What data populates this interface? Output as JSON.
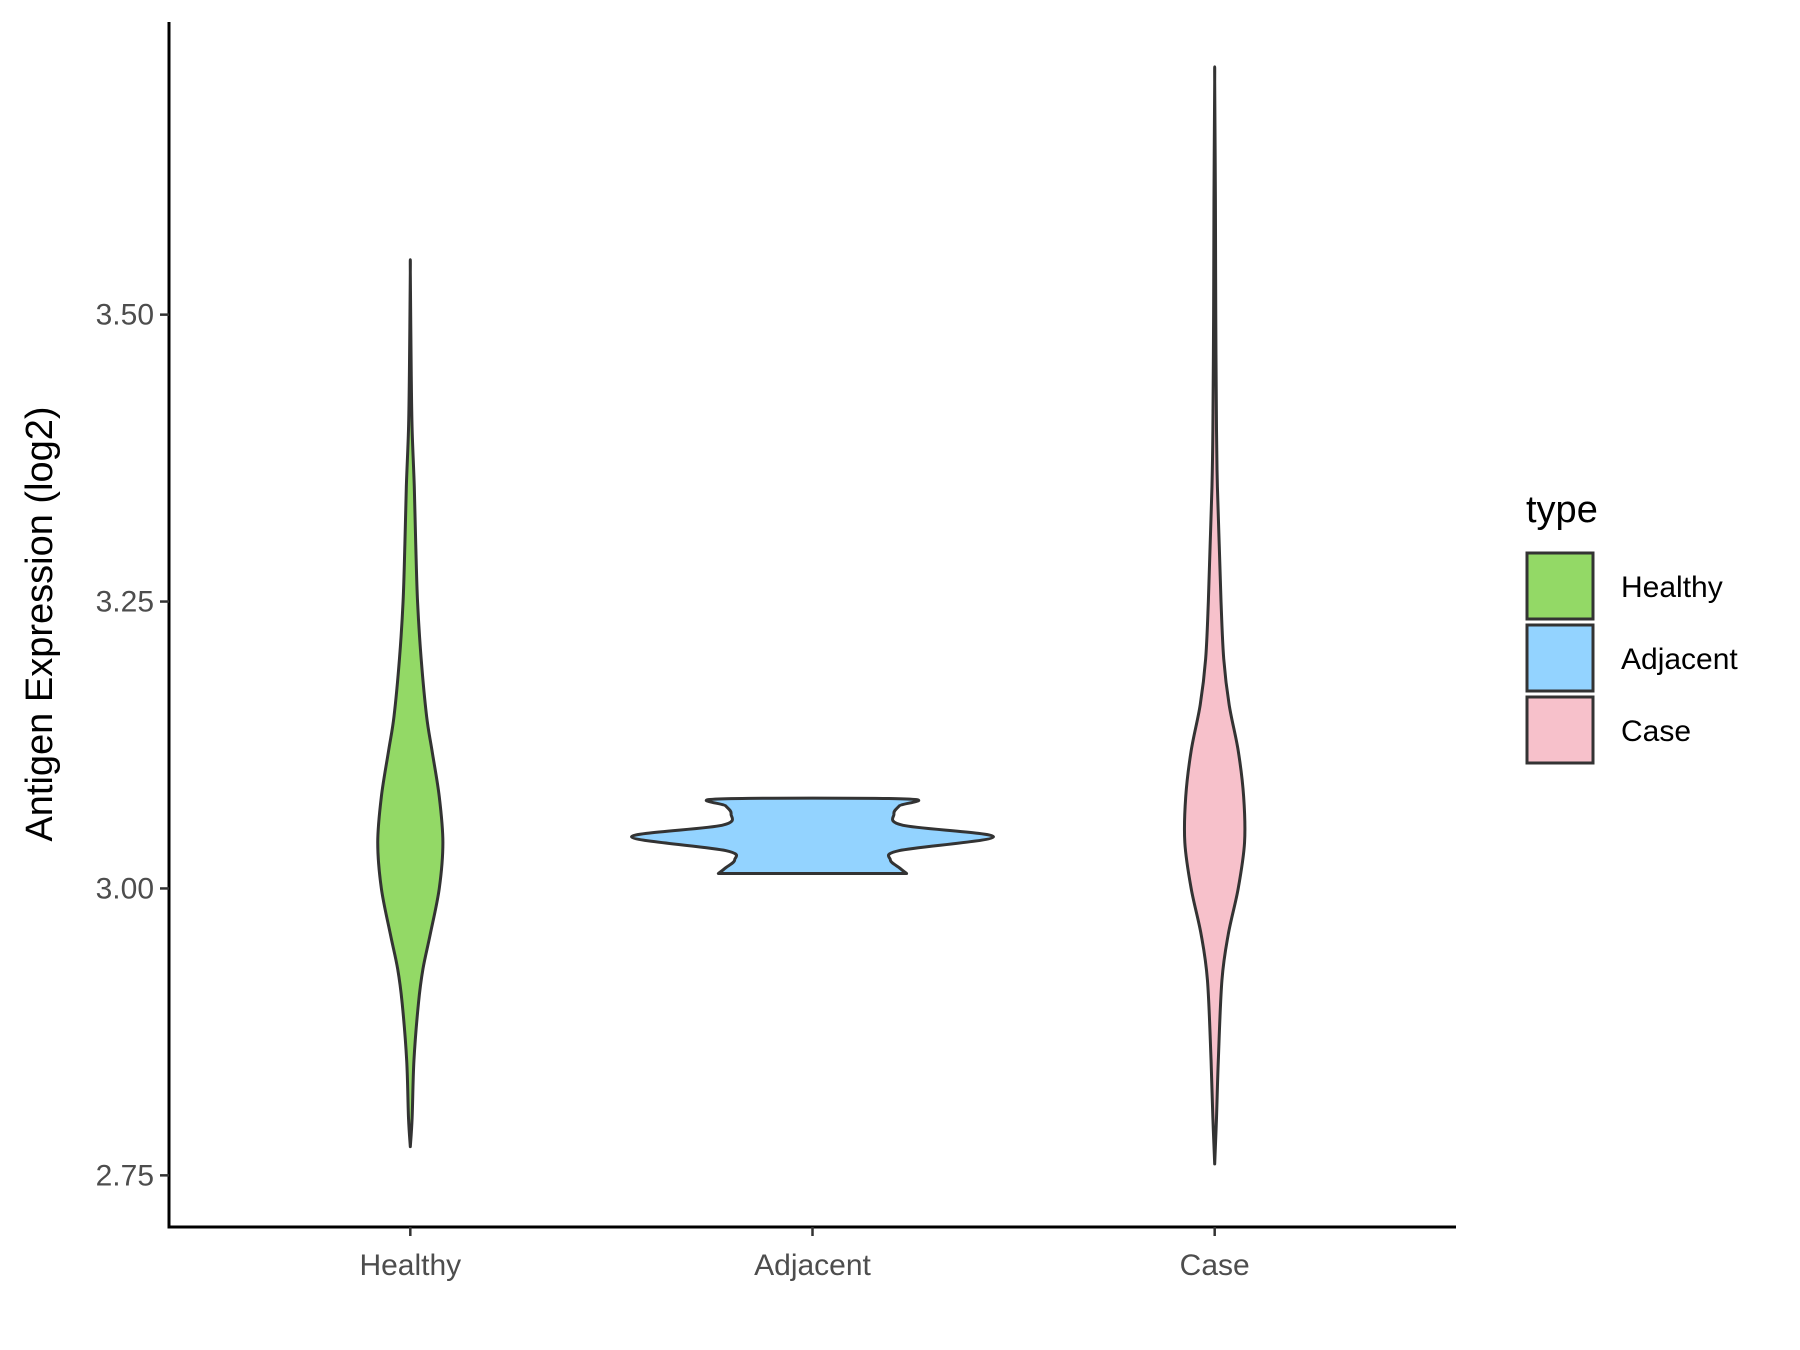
{
  "chart_data": {
    "type": "violin",
    "title": "",
    "xlabel": "",
    "ylabel": "Antigen Expression (log2)",
    "ylim": [
      2.705,
      3.755
    ],
    "yticks": [
      2.75,
      3.0,
      3.25,
      3.5
    ],
    "ytick_labels": [
      "2.75",
      "3.00",
      "3.25",
      "3.50"
    ],
    "grid": false,
    "categories": [
      "Healthy",
      "Adjacent",
      "Case"
    ],
    "legend": {
      "title": "type",
      "position": "right",
      "entries": [
        "Healthy",
        "Adjacent",
        "Case"
      ]
    },
    "series": [
      {
        "name": "Healthy",
        "color": "#93d966",
        "profile": [
          [
            2.775,
            0.0
          ],
          [
            2.8,
            0.01
          ],
          [
            2.85,
            0.02
          ],
          [
            2.9,
            0.045
          ],
          [
            2.93,
            0.07
          ],
          [
            2.96,
            0.11
          ],
          [
            3.0,
            0.16
          ],
          [
            3.04,
            0.18
          ],
          [
            3.08,
            0.16
          ],
          [
            3.12,
            0.12
          ],
          [
            3.15,
            0.09
          ],
          [
            3.2,
            0.06
          ],
          [
            3.25,
            0.04
          ],
          [
            3.3,
            0.03
          ],
          [
            3.35,
            0.022
          ],
          [
            3.4,
            0.01
          ],
          [
            3.45,
            0.005
          ],
          [
            3.537,
            0.0
          ]
        ]
      },
      {
        "name": "Adjacent",
        "color": "#93d3ff",
        "profile": [
          [
            3.013,
            0.52
          ],
          [
            3.018,
            0.48
          ],
          [
            3.025,
            0.43
          ],
          [
            3.033,
            0.48
          ],
          [
            3.045,
            1.0
          ],
          [
            3.055,
            0.5
          ],
          [
            3.065,
            0.45
          ],
          [
            3.072,
            0.48
          ],
          [
            3.078,
            0.52
          ]
        ]
      },
      {
        "name": "Case",
        "color": "#f7c1cb",
        "profile": [
          [
            2.76,
            0.0
          ],
          [
            2.8,
            0.01
          ],
          [
            2.85,
            0.02
          ],
          [
            2.92,
            0.04
          ],
          [
            2.96,
            0.075
          ],
          [
            3.0,
            0.13
          ],
          [
            3.04,
            0.165
          ],
          [
            3.08,
            0.16
          ],
          [
            3.12,
            0.13
          ],
          [
            3.16,
            0.08
          ],
          [
            3.2,
            0.05
          ],
          [
            3.25,
            0.035
          ],
          [
            3.3,
            0.025
          ],
          [
            3.35,
            0.015
          ],
          [
            3.4,
            0.01
          ],
          [
            3.5,
            0.006
          ],
          [
            3.6,
            0.004
          ],
          [
            3.703,
            0.0
          ]
        ]
      }
    ]
  }
}
